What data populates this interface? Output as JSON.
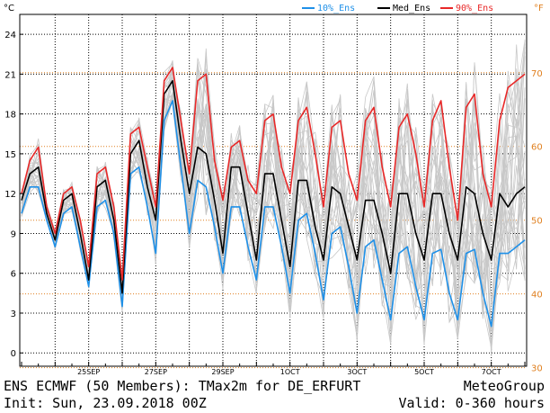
{
  "chart_data": {
    "type": "line",
    "left_unit": "°C",
    "right_unit": "°F",
    "x_tick_labels": [
      "25SEP",
      "27SEP",
      "29SEP",
      "1OCT",
      "3OCT",
      "5OCT",
      "7OCT"
    ],
    "y_ticks_c": [
      0,
      3,
      6,
      9,
      12,
      15,
      18,
      21,
      24
    ],
    "y_ticks_f": [
      30,
      40,
      50,
      60,
      70
    ],
    "ylim_c": [
      -1,
      25.5
    ],
    "xlim_hours": [
      0,
      360
    ],
    "grid": true,
    "legend_position": "top",
    "x_hours": [
      0,
      6,
      12,
      18,
      24,
      30,
      36,
      42,
      48,
      54,
      60,
      66,
      72,
      78,
      84,
      90,
      96,
      102,
      108,
      114,
      120,
      126,
      132,
      138,
      144,
      150,
      156,
      162,
      168,
      174,
      180,
      186,
      192,
      198,
      204,
      210,
      216,
      222,
      228,
      234,
      240,
      246,
      252,
      258,
      264,
      270,
      276,
      282,
      288,
      294,
      300,
      306,
      312,
      318,
      324,
      330,
      336,
      342,
      348,
      354,
      360
    ],
    "series": [
      {
        "name": "10%_Ens",
        "color": "#1e90e8",
        "values": [
          10.5,
          12.5,
          12.5,
          10.0,
          8.0,
          10.5,
          11.0,
          8.0,
          5.0,
          11.0,
          11.5,
          9.0,
          3.5,
          13.5,
          14.0,
          11.0,
          7.5,
          17.5,
          19.0,
          14.0,
          9.0,
          13.0,
          12.5,
          9.5,
          6.0,
          11.0,
          11.0,
          8.0,
          5.5,
          11.0,
          11.0,
          8.0,
          4.5,
          10.0,
          10.5,
          7.5,
          4.0,
          9.0,
          9.5,
          6.5,
          3.0,
          8.0,
          8.5,
          5.5,
          2.5,
          7.5,
          8.0,
          5.0,
          2.5,
          7.5,
          7.8,
          4.5,
          2.5,
          7.5,
          7.8,
          4.5,
          2.0,
          7.5,
          7.5,
          8.0,
          8.5
        ]
      },
      {
        "name": "Med_Ens",
        "color": "#000000",
        "values": [
          11.5,
          13.5,
          14.0,
          10.5,
          8.5,
          11.5,
          12.0,
          9.0,
          5.5,
          12.5,
          13.0,
          10.0,
          4.5,
          15.0,
          16.0,
          12.5,
          10.0,
          19.5,
          20.5,
          16.0,
          12.0,
          15.5,
          15.0,
          11.5,
          7.5,
          14.0,
          14.0,
          10.5,
          7.0,
          13.5,
          13.5,
          10.0,
          6.5,
          13.0,
          13.0,
          9.5,
          7.0,
          12.5,
          12.0,
          9.5,
          7.0,
          11.5,
          11.5,
          9.0,
          6.0,
          12.0,
          12.0,
          9.0,
          7.0,
          12.0,
          12.0,
          9.0,
          7.0,
          12.5,
          12.0,
          9.0,
          7.0,
          12.0,
          11.0,
          12.0,
          12.5
        ]
      },
      {
        "name": "90%_Ens",
        "color": "#e82828",
        "values": [
          12.0,
          14.5,
          15.5,
          11.0,
          9.0,
          12.0,
          12.5,
          10.0,
          6.5,
          13.5,
          14.0,
          11.0,
          5.5,
          16.5,
          17.0,
          14.0,
          11.0,
          20.5,
          21.5,
          17.5,
          13.5,
          20.5,
          21.0,
          14.5,
          11.5,
          15.5,
          16.0,
          13.0,
          12.0,
          17.5,
          18.0,
          14.0,
          12.0,
          17.5,
          18.5,
          15.0,
          11.0,
          17.0,
          17.5,
          13.5,
          11.5,
          17.5,
          18.5,
          14.0,
          11.0,
          17.0,
          18.0,
          15.0,
          11.0,
          17.5,
          19.0,
          14.0,
          10.0,
          18.5,
          19.5,
          13.5,
          11.0,
          17.5,
          20.0,
          20.5,
          21.0
        ]
      }
    ]
  },
  "legend": {
    "items": [
      {
        "label": "10%_Ens",
        "color": "#1e90e8"
      },
      {
        "label": "Med_Ens",
        "color": "#000000"
      },
      {
        "label": "90%_Ens",
        "color": "#e82828"
      }
    ]
  },
  "footer": {
    "title": "ENS ECMWF (50 Members): TMax2m for DE_ERFURT",
    "init": "Init: Sun, 23.09.2018 00Z",
    "brand": "MeteoGroup",
    "valid": "Valid: 0-360 hours"
  },
  "colors": {
    "axis": "#000000",
    "fahrenheit_axis": "#e08020",
    "grid": "#000000",
    "ensemble_member": "#c8c8c8"
  }
}
